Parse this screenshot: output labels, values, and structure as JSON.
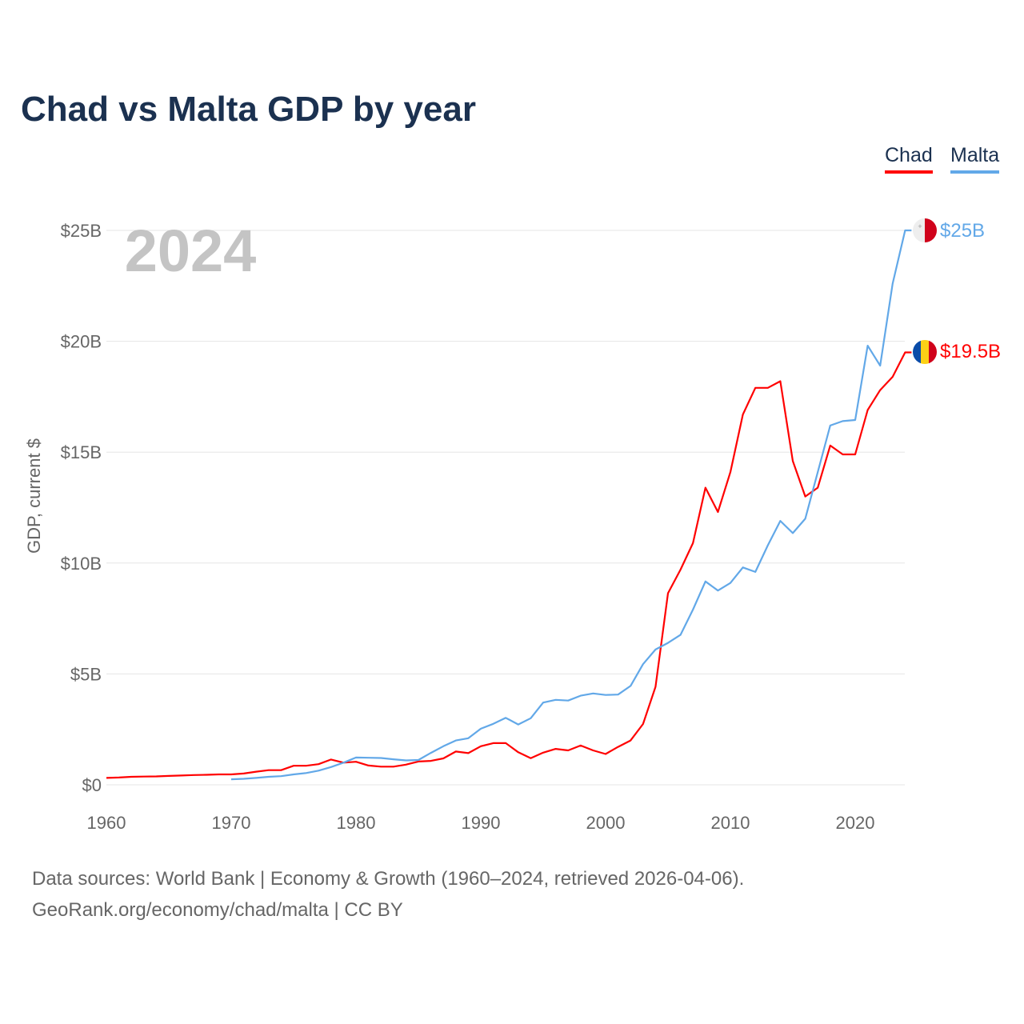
{
  "title": "Chad vs Malta GDP by year",
  "legend": {
    "chad": "Chad",
    "malta": "Malta"
  },
  "year_watermark": "2024",
  "end_labels": {
    "chad": "$19.5B",
    "malta": "$25B"
  },
  "source_line1": "Data sources: World Bank | Economy & Growth (1960–2024, retrieved 2026-04-06).",
  "source_line2": "GeoRank.org/economy/chad/malta | CC BY",
  "chart_data": {
    "type": "line",
    "title": "Chad vs Malta GDP by year",
    "xlabel": "",
    "ylabel": "GDP, current $",
    "xlim": [
      1960,
      2024
    ],
    "ylim": [
      0,
      25
    ],
    "y_unit": "billion USD",
    "x_ticks": [
      1960,
      1970,
      1980,
      1990,
      2000,
      2010,
      2020
    ],
    "y_ticks": [
      0,
      5,
      10,
      15,
      20,
      25
    ],
    "y_tick_labels": [
      "$0",
      "$5B",
      "$10B",
      "$15B",
      "$20B",
      "$25B"
    ],
    "grid": true,
    "legend_position": "top-right",
    "series": [
      {
        "name": "Chad",
        "color": "#ff0000",
        "start_year": 1960,
        "values": [
          0.31,
          0.33,
          0.36,
          0.37,
          0.38,
          0.4,
          0.42,
          0.44,
          0.45,
          0.47,
          0.47,
          0.51,
          0.59,
          0.66,
          0.66,
          0.86,
          0.86,
          0.93,
          1.14,
          1.0,
          1.04,
          0.87,
          0.82,
          0.82,
          0.91,
          1.05,
          1.08,
          1.19,
          1.5,
          1.43,
          1.74,
          1.88,
          1.88,
          1.47,
          1.2,
          1.45,
          1.62,
          1.55,
          1.77,
          1.55,
          1.39,
          1.71,
          2.0,
          2.74,
          4.42,
          8.64,
          9.7,
          10.9,
          13.4,
          12.3,
          14.1,
          16.7,
          17.9,
          17.9,
          18.2,
          14.6,
          13.0,
          13.4,
          15.3,
          14.9,
          14.9,
          16.9,
          17.8,
          18.4,
          19.5
        ]
      },
      {
        "name": "Malta",
        "color": "#62a8e8",
        "start_year": 1970,
        "values": [
          0.25,
          0.27,
          0.31,
          0.36,
          0.39,
          0.47,
          0.53,
          0.64,
          0.8,
          1.0,
          1.23,
          1.22,
          1.21,
          1.15,
          1.1,
          1.12,
          1.44,
          1.74,
          2.0,
          2.1,
          2.53,
          2.75,
          3.02,
          2.72,
          3.0,
          3.71,
          3.83,
          3.8,
          4.02,
          4.12,
          4.05,
          4.07,
          4.46,
          5.44,
          6.1,
          6.4,
          6.76,
          7.9,
          9.17,
          8.76,
          9.1,
          9.8,
          9.6,
          10.8,
          11.9,
          11.35,
          12.0,
          14.1,
          16.2,
          16.4,
          16.45,
          19.8,
          18.9,
          22.6,
          25.0
        ]
      }
    ]
  }
}
